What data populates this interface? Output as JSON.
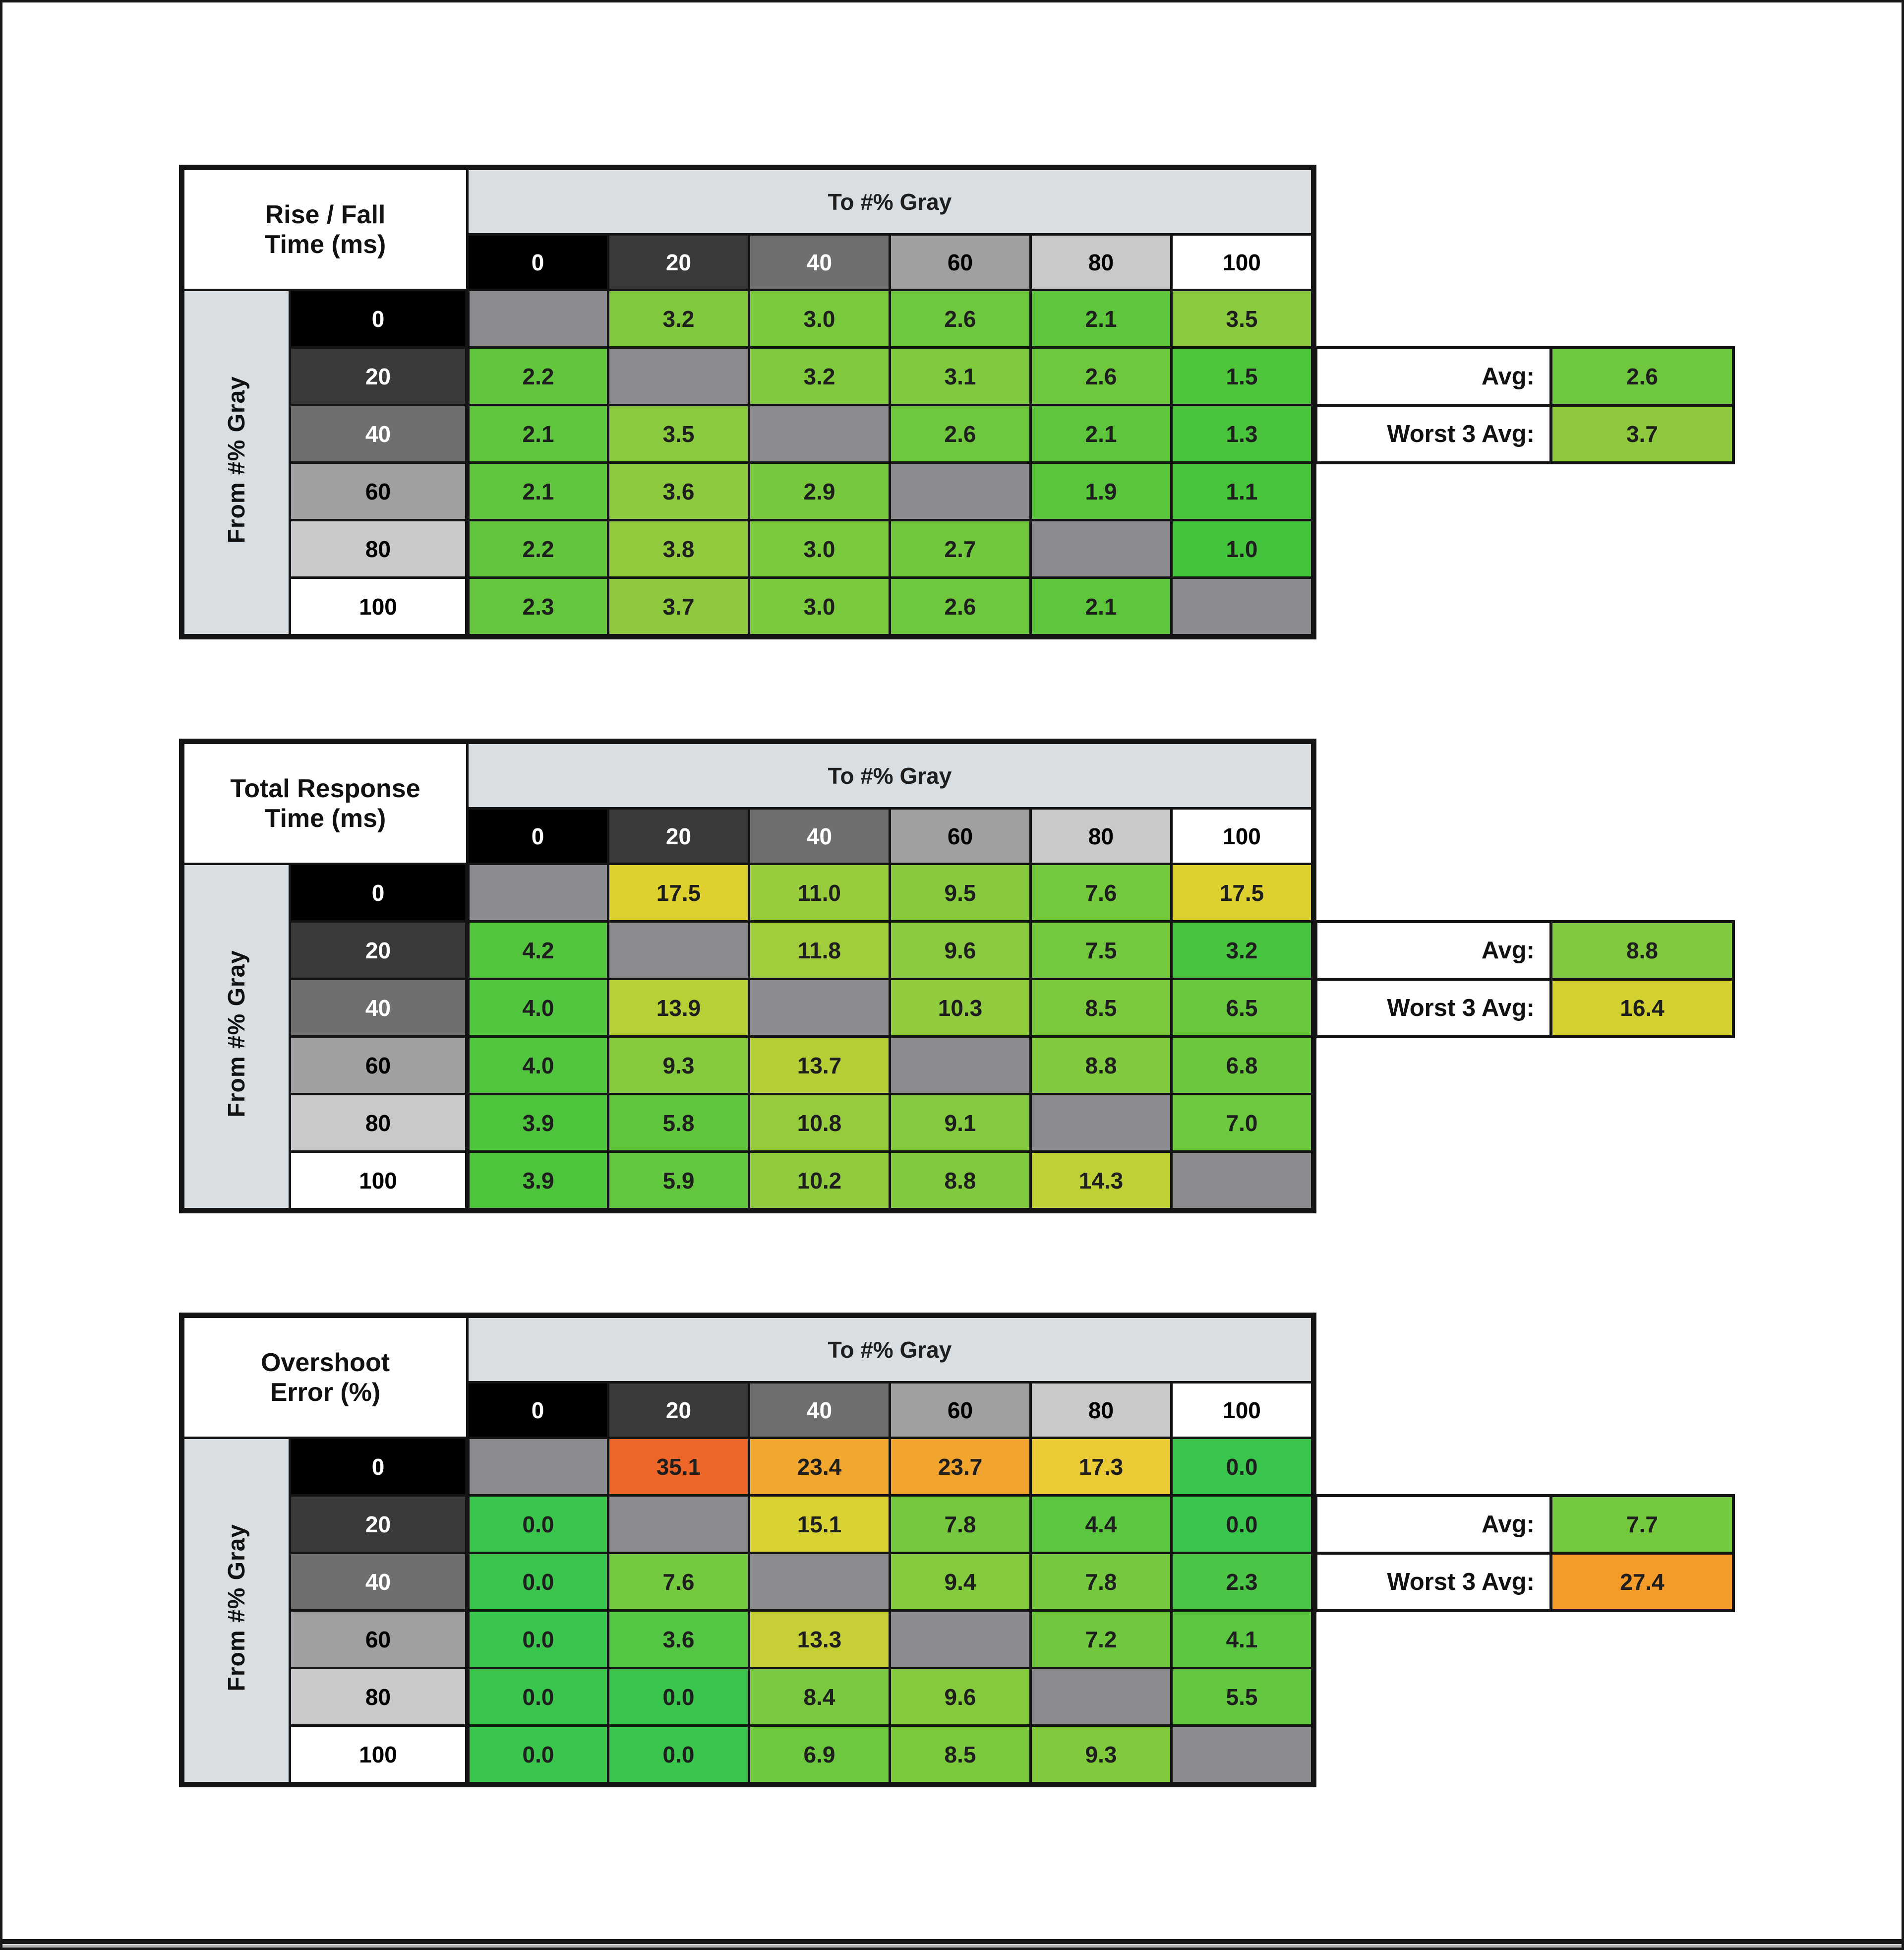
{
  "page": {
    "background": "#ffffff",
    "border_color": "#17171a"
  },
  "shared": {
    "to_label": "To #% Gray",
    "from_label": "From #% Gray",
    "gray_levels": [
      "0",
      "20",
      "40",
      "60",
      "80",
      "100"
    ],
    "header_bg": [
      "#000000",
      "#3a3a3a",
      "#6f6f6f",
      "#a0a0a2",
      "#c9c9cc",
      "#ffffff"
    ],
    "header_fg": [
      "#ffffff",
      "#ffffff",
      "#ffffff",
      "#000000",
      "#000000",
      "#000000"
    ],
    "band_color": "#d9dee3",
    "side_color": "#d9dee3",
    "diag_color": "#8b8b90",
    "avg_label": "Avg:",
    "worst_label": "Worst 3 Avg:"
  },
  "tables": [
    {
      "name": "rise-fall-time",
      "title_line1": "Rise / Fall",
      "title_line2": "Time (ms)",
      "rows": [
        [
          null,
          {
            "v": "3.2",
            "c": "#80c93d"
          },
          {
            "v": "3.0",
            "c": "#7bc93d"
          },
          {
            "v": "2.6",
            "c": "#6ec73d"
          },
          {
            "v": "2.1",
            "c": "#5ec63c"
          },
          {
            "v": "3.5",
            "c": "#8aca3e"
          }
        ],
        [
          {
            "v": "2.2",
            "c": "#61c63c"
          },
          null,
          {
            "v": "3.2",
            "c": "#80c93d"
          },
          {
            "v": "3.1",
            "c": "#7ec93d"
          },
          {
            "v": "2.6",
            "c": "#6ec73d"
          },
          {
            "v": "1.5",
            "c": "#4fc53c"
          }
        ],
        [
          {
            "v": "2.1",
            "c": "#5ec63c"
          },
          {
            "v": "3.5",
            "c": "#8aca3e"
          },
          null,
          {
            "v": "2.6",
            "c": "#6ec73d"
          },
          {
            "v": "2.1",
            "c": "#5ec63c"
          },
          {
            "v": "1.3",
            "c": "#4ac43c"
          }
        ],
        [
          {
            "v": "2.1",
            "c": "#5ec63c"
          },
          {
            "v": "3.6",
            "c": "#8dca3e"
          },
          {
            "v": "2.9",
            "c": "#78c83d"
          },
          null,
          {
            "v": "1.9",
            "c": "#59c53c"
          },
          {
            "v": "1.1",
            "c": "#46c43c"
          }
        ],
        [
          {
            "v": "2.2",
            "c": "#61c63c"
          },
          {
            "v": "3.8",
            "c": "#92cb3e"
          },
          {
            "v": "3.0",
            "c": "#7bc93d"
          },
          {
            "v": "2.7",
            "c": "#71c83d"
          },
          null,
          {
            "v": "1.0",
            "c": "#44c33c"
          }
        ],
        [
          {
            "v": "2.3",
            "c": "#64c63c"
          },
          {
            "v": "3.7",
            "c": "#8fca3e"
          },
          {
            "v": "3.0",
            "c": "#7bc93d"
          },
          {
            "v": "2.6",
            "c": "#6ec73d"
          },
          {
            "v": "2.1",
            "c": "#5ec63c"
          },
          null
        ]
      ],
      "avg": {
        "value": "2.6",
        "color": "#6ec73d"
      },
      "worst3": {
        "value": "3.7",
        "color": "#8fca3e"
      }
    },
    {
      "name": "total-response-time",
      "title_line1": "Total Response",
      "title_line2": "Time (ms)",
      "rows": [
        [
          null,
          {
            "v": "17.5",
            "c": "#ded12f"
          },
          {
            "v": "11.0",
            "c": "#98cc3d"
          },
          {
            "v": "9.5",
            "c": "#88ca3e"
          },
          {
            "v": "7.6",
            "c": "#74c93d"
          },
          {
            "v": "17.5",
            "c": "#ded12f"
          }
        ],
        [
          {
            "v": "4.2",
            "c": "#52c53d"
          },
          null,
          {
            "v": "11.8",
            "c": "#a1cc3c"
          },
          {
            "v": "9.6",
            "c": "#89ca3e"
          },
          {
            "v": "7.5",
            "c": "#73c83d"
          },
          {
            "v": "3.2",
            "c": "#47c43f"
          }
        ],
        [
          {
            "v": "4.0",
            "c": "#50c53d"
          },
          {
            "v": "13.9",
            "c": "#b9cf36"
          },
          null,
          {
            "v": "10.3",
            "c": "#91cb3e"
          },
          {
            "v": "8.5",
            "c": "#7dc93d"
          },
          {
            "v": "6.5",
            "c": "#68c73d"
          }
        ],
        [
          {
            "v": "4.0",
            "c": "#50c53d"
          },
          {
            "v": "9.3",
            "c": "#86ca3e"
          },
          {
            "v": "13.7",
            "c": "#b7cf36"
          },
          null,
          {
            "v": "8.8",
            "c": "#81ca3d"
          },
          {
            "v": "6.8",
            "c": "#6bc83d"
          }
        ],
        [
          {
            "v": "3.9",
            "c": "#4ec43d"
          },
          {
            "v": "5.8",
            "c": "#60c73c"
          },
          {
            "v": "10.8",
            "c": "#96cb3e"
          },
          {
            "v": "9.1",
            "c": "#84ca3e"
          },
          null,
          {
            "v": "7.0",
            "c": "#6dc83d"
          }
        ],
        [
          {
            "v": "3.9",
            "c": "#4ec43d"
          },
          {
            "v": "5.9",
            "c": "#61c73c"
          },
          {
            "v": "10.2",
            "c": "#90cb3e"
          },
          {
            "v": "8.8",
            "c": "#81ca3d"
          },
          {
            "v": "14.3",
            "c": "#bed033"
          },
          null
        ]
      ],
      "avg": {
        "value": "8.8",
        "color": "#81ca3d"
      },
      "worst3": {
        "value": "16.4",
        "color": "#d3d12f"
      }
    },
    {
      "name": "overshoot-error",
      "title_line1": "Overshoot",
      "title_line2": "Error (%)",
      "rows": [
        [
          null,
          {
            "v": "35.1",
            "c": "#ed6527"
          },
          {
            "v": "23.4",
            "c": "#f2a72f"
          },
          {
            "v": "23.7",
            "c": "#f2a52e"
          },
          {
            "v": "17.3",
            "c": "#eaca35"
          },
          {
            "v": "0.0",
            "c": "#3ac54c"
          }
        ],
        [
          {
            "v": "0.0",
            "c": "#3ac54c"
          },
          null,
          {
            "v": "15.1",
            "c": "#d8d233"
          },
          {
            "v": "7.8",
            "c": "#76c93e"
          },
          {
            "v": "4.4",
            "c": "#5cc741"
          },
          {
            "v": "0.0",
            "c": "#3ac54c"
          }
        ],
        [
          {
            "v": "0.0",
            "c": "#3ac54c"
          },
          {
            "v": "7.6",
            "c": "#74c93e"
          },
          null,
          {
            "v": "9.4",
            "c": "#83ca3d"
          },
          {
            "v": "7.8",
            "c": "#76c93e"
          },
          {
            "v": "2.3",
            "c": "#4cc546"
          }
        ],
        [
          {
            "v": "0.0",
            "c": "#3ac54c"
          },
          {
            "v": "3.6",
            "c": "#55c643"
          },
          {
            "v": "13.3",
            "c": "#c6cf35"
          },
          null,
          {
            "v": "7.2",
            "c": "#71c83f"
          },
          {
            "v": "4.1",
            "c": "#5ac642"
          }
        ],
        [
          {
            "v": "0.0",
            "c": "#3ac54c"
          },
          {
            "v": "0.0",
            "c": "#3ac54c"
          },
          {
            "v": "8.4",
            "c": "#7bc93e"
          },
          {
            "v": "9.6",
            "c": "#85ca3d"
          },
          null,
          {
            "v": "5.5",
            "c": "#64c740"
          }
        ],
        [
          {
            "v": "0.0",
            "c": "#3ac54c"
          },
          {
            "v": "0.0",
            "c": "#3ac54c"
          },
          {
            "v": "6.9",
            "c": "#6ec83f"
          },
          {
            "v": "8.5",
            "c": "#7cc93e"
          },
          {
            "v": "9.3",
            "c": "#82ca3d"
          },
          null
        ]
      ],
      "avg": {
        "value": "7.7",
        "color": "#75c93e"
      },
      "worst3": {
        "value": "27.4",
        "color": "#f49b2a"
      }
    }
  ],
  "chart_data": [
    {
      "type": "heatmap",
      "title": "Rise / Fall Time (ms)",
      "xlabel": "To #% Gray",
      "ylabel": "From #% Gray",
      "x_categories": [
        0,
        20,
        40,
        60,
        80,
        100
      ],
      "y_categories": [
        0,
        20,
        40,
        60,
        80,
        100
      ],
      "values": [
        [
          null,
          3.2,
          3.0,
          2.6,
          2.1,
          3.5
        ],
        [
          2.2,
          null,
          3.2,
          3.1,
          2.6,
          1.5
        ],
        [
          2.1,
          3.5,
          null,
          2.6,
          2.1,
          1.3
        ],
        [
          2.1,
          3.6,
          2.9,
          null,
          1.9,
          1.1
        ],
        [
          2.2,
          3.8,
          3.0,
          2.7,
          null,
          1.0
        ],
        [
          2.3,
          3.7,
          3.0,
          2.6,
          2.1,
          null
        ]
      ],
      "avg": 2.6,
      "worst_3_avg": 3.7
    },
    {
      "type": "heatmap",
      "title": "Total Response Time (ms)",
      "xlabel": "To #% Gray",
      "ylabel": "From #% Gray",
      "x_categories": [
        0,
        20,
        40,
        60,
        80,
        100
      ],
      "y_categories": [
        0,
        20,
        40,
        60,
        80,
        100
      ],
      "values": [
        [
          null,
          17.5,
          11.0,
          9.5,
          7.6,
          17.5
        ],
        [
          4.2,
          null,
          11.8,
          9.6,
          7.5,
          3.2
        ],
        [
          4.0,
          13.9,
          null,
          10.3,
          8.5,
          6.5
        ],
        [
          4.0,
          9.3,
          13.7,
          null,
          8.8,
          6.8
        ],
        [
          3.9,
          5.8,
          10.8,
          9.1,
          null,
          7.0
        ],
        [
          3.9,
          5.9,
          10.2,
          8.8,
          14.3,
          null
        ]
      ],
      "avg": 8.8,
      "worst_3_avg": 16.4
    },
    {
      "type": "heatmap",
      "title": "Overshoot Error (%)",
      "xlabel": "To #% Gray",
      "ylabel": "From #% Gray",
      "x_categories": [
        0,
        20,
        40,
        60,
        80,
        100
      ],
      "y_categories": [
        0,
        20,
        40,
        60,
        80,
        100
      ],
      "values": [
        [
          null,
          35.1,
          23.4,
          23.7,
          17.3,
          0.0
        ],
        [
          0.0,
          null,
          15.1,
          7.8,
          4.4,
          0.0
        ],
        [
          0.0,
          7.6,
          null,
          9.4,
          7.8,
          2.3
        ],
        [
          0.0,
          3.6,
          13.3,
          null,
          7.2,
          4.1
        ],
        [
          0.0,
          0.0,
          8.4,
          9.6,
          null,
          5.5
        ],
        [
          0.0,
          0.0,
          6.9,
          8.5,
          9.3,
          null
        ]
      ],
      "avg": 7.7,
      "worst_3_avg": 27.4
    }
  ]
}
